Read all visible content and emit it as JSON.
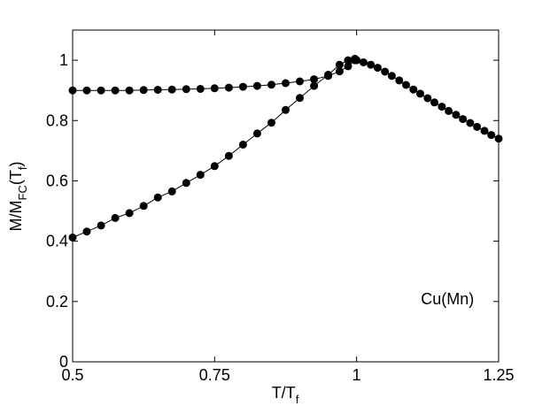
{
  "chart_data": {
    "type": "line",
    "xlabel": {
      "main": "T/T",
      "sub": "f"
    },
    "ylabel": {
      "pre": "M/M",
      "sub1": "FC",
      "mid": "(T",
      "sub2": "f",
      "post": ")"
    },
    "xlim": [
      0.5,
      1.25
    ],
    "ylim": [
      0,
      1.1
    ],
    "xticks": [
      {
        "value": 0.5,
        "label": "0.5"
      },
      {
        "value": 0.75,
        "label": "0.75"
      },
      {
        "value": 1.0,
        "label": "1"
      },
      {
        "value": 1.25,
        "label": "1.25"
      }
    ],
    "yticks": [
      {
        "value": 0,
        "label": "0"
      },
      {
        "value": 0.2,
        "label": "0.2"
      },
      {
        "value": 0.4,
        "label": "0.4"
      },
      {
        "value": 0.6,
        "label": "0.6"
      },
      {
        "value": 0.8,
        "label": "0.8"
      },
      {
        "value": 1.0,
        "label": "1"
      }
    ],
    "grid": false,
    "annotation": {
      "text": "Cu(Mn)",
      "x": 1.16,
      "y": 0.19
    },
    "marker_color": "#000000",
    "line_color": "#000000",
    "series": [
      {
        "x": [
          0.5,
          0.525,
          0.55,
          0.575,
          0.6,
          0.625,
          0.65,
          0.675,
          0.7,
          0.725,
          0.75,
          0.775,
          0.8,
          0.825,
          0.85,
          0.875,
          0.9,
          0.925,
          0.95,
          0.97,
          0.985,
          0.997
        ],
        "y": [
          0.9,
          0.9,
          0.9,
          0.9,
          0.9,
          0.901,
          0.902,
          0.903,
          0.904,
          0.905,
          0.907,
          0.909,
          0.912,
          0.915,
          0.919,
          0.924,
          0.93,
          0.937,
          0.948,
          0.963,
          0.98,
          1.0
        ]
      },
      {
        "x": [
          0.5,
          0.525,
          0.55,
          0.575,
          0.6,
          0.625,
          0.65,
          0.675,
          0.7,
          0.725,
          0.75,
          0.775,
          0.8,
          0.825,
          0.85,
          0.875,
          0.9,
          0.925,
          0.95,
          0.97,
          0.985,
          0.997
        ],
        "y": [
          0.412,
          0.432,
          0.452,
          0.477,
          0.493,
          0.517,
          0.545,
          0.565,
          0.593,
          0.62,
          0.649,
          0.683,
          0.72,
          0.757,
          0.793,
          0.835,
          0.875,
          0.915,
          0.952,
          0.985,
          1.0,
          1.005
        ]
      },
      {
        "x": [
          1.0,
          1.012,
          1.025,
          1.037,
          1.05,
          1.062,
          1.075,
          1.087,
          1.1,
          1.112,
          1.125,
          1.137,
          1.15,
          1.162,
          1.175,
          1.187,
          1.2,
          1.212,
          1.225,
          1.237,
          1.25
        ],
        "y": [
          1.0,
          0.993,
          0.985,
          0.975,
          0.962,
          0.948,
          0.933,
          0.918,
          0.903,
          0.889,
          0.874,
          0.86,
          0.846,
          0.832,
          0.819,
          0.805,
          0.792,
          0.779,
          0.766,
          0.752,
          0.74
        ]
      }
    ]
  }
}
